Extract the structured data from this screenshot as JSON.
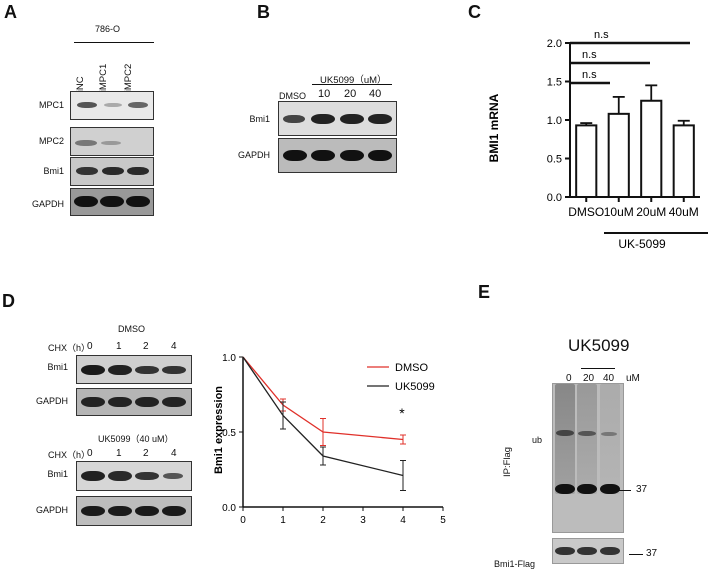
{
  "panels": {
    "A": {
      "letter": "A",
      "cell_line": "786-O",
      "lanes": [
        "siNC",
        "siMPC1",
        "siMPC2"
      ],
      "rows": [
        "MPC1",
        "MPC2",
        "Bmi1",
        "GAPDH"
      ]
    },
    "B": {
      "letter": "B",
      "treatment": "UK5099（uM）",
      "lanes": [
        "DMSO",
        "10",
        "20",
        "40"
      ],
      "rows": [
        "Bmi1",
        "GAPDH"
      ]
    },
    "C": {
      "letter": "C",
      "significance": [
        "n.s",
        "n.s",
        "n.s"
      ],
      "group_label": "UK-5099"
    },
    "D": {
      "letter": "D",
      "blot1_title": "DMSO",
      "blot2_title": "UK5099（40 uM）",
      "chx_label": "CHX（h）",
      "timepoints": [
        "0",
        "1",
        "2",
        "4"
      ],
      "rows": [
        "Bmi1",
        "GAPDH"
      ],
      "star": "*"
    },
    "E": {
      "letter": "E",
      "title": "UK5099",
      "lanes": [
        "0",
        "20",
        "40"
      ],
      "unit": "uM",
      "ub_label": "ub",
      "ip_label": "IP:Flag",
      "marker1": "37",
      "marker2": "37",
      "bottom_label": "Bmi1-Flag"
    }
  },
  "chart_data": [
    {
      "type": "bar",
      "ylabel": "BMI1 mRNA",
      "categories": [
        "DMSO",
        "10uM",
        "20uM",
        "40uM"
      ],
      "values": [
        0.93,
        1.08,
        1.25,
        0.93
      ],
      "errors": [
        0.03,
        0.22,
        0.2,
        0.06
      ],
      "ylim": [
        0,
        2.0
      ],
      "yticks": [
        "0.0",
        "0.5",
        "1.0",
        "1.5",
        "2.0"
      ],
      "bar_color": "#ffffff",
      "grid": false
    },
    {
      "type": "line",
      "ylabel": "Bmi1 expression",
      "xlim": [
        0,
        5
      ],
      "ylim": [
        0,
        1.0
      ],
      "xticks": [
        "0",
        "1",
        "2",
        "3",
        "4",
        "5"
      ],
      "yticks": [
        "0.0",
        "0.5",
        "1.0"
      ],
      "legend_position": "top-right",
      "grid": false,
      "series": [
        {
          "name": "DMSO",
          "color": "#e0302a",
          "x": [
            0,
            1,
            2,
            4
          ],
          "y": [
            1.0,
            0.68,
            0.5,
            0.45
          ],
          "err": [
            0,
            0.04,
            0.09,
            0.03
          ]
        },
        {
          "name": "UK5099",
          "color": "#222222",
          "x": [
            0,
            1,
            2,
            4
          ],
          "y": [
            1.0,
            0.61,
            0.34,
            0.21
          ],
          "err": [
            0,
            0.09,
            0.06,
            0.1
          ]
        }
      ]
    }
  ]
}
